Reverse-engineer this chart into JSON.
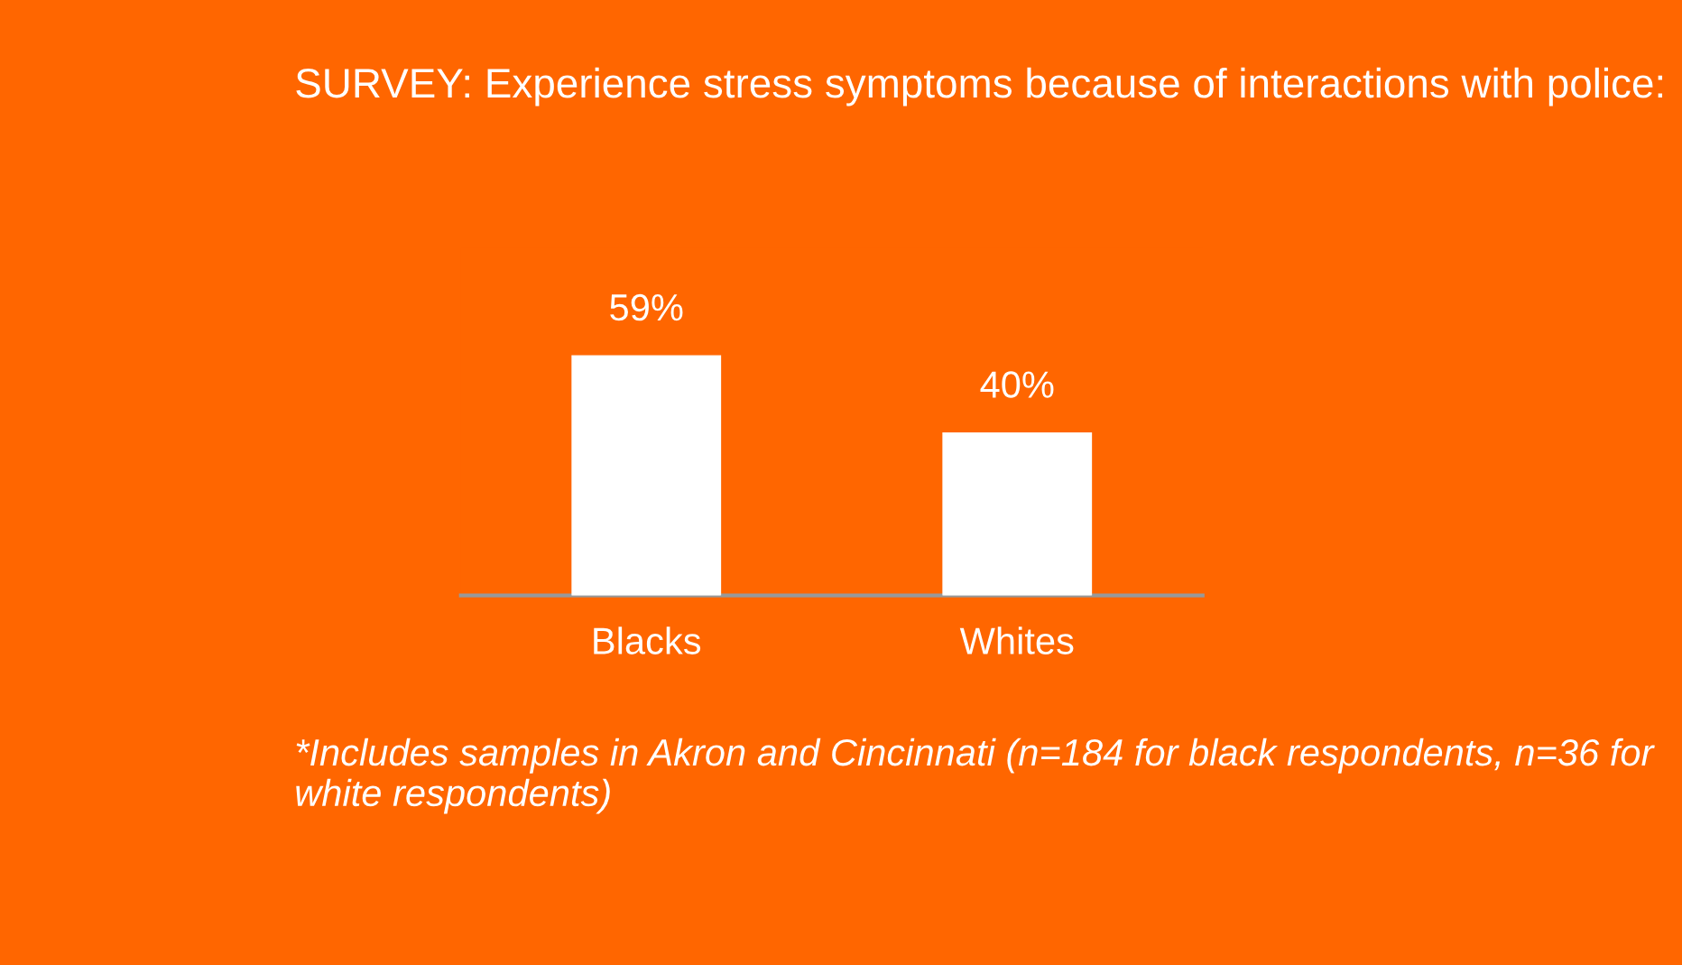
{
  "chart_data": {
    "type": "bar",
    "title": "SURVEY: Experience stress symptoms because of interactions with police:",
    "categories": [
      "Blacks",
      "Whites"
    ],
    "values": [
      59,
      40
    ],
    "value_labels": [
      "59%",
      "40%"
    ],
    "color": "#ffffff",
    "grid": false,
    "annotations": [
      "*Includes samples in Akron and Cincinnati (n=184 for black respondents, n=36 for white respondents)"
    ]
  }
}
